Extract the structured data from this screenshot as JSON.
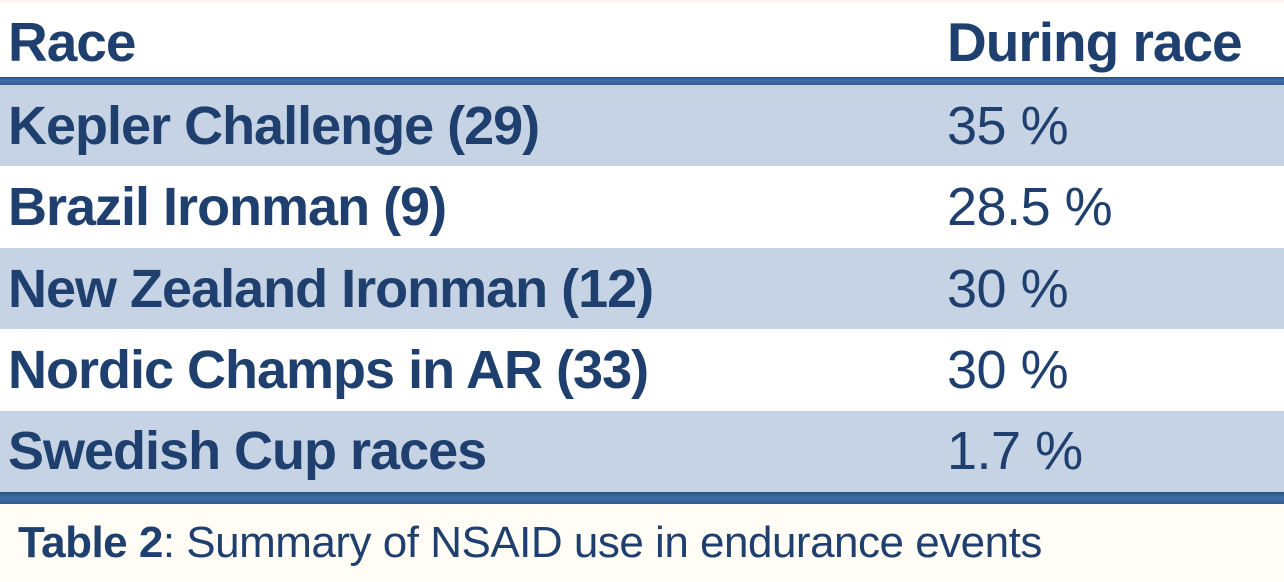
{
  "table": {
    "header": {
      "race_column_label": "Race",
      "during_race_column_label": "During race"
    },
    "rows": [
      {
        "race": "Kepler Challenge (29)",
        "during_race": "35 %"
      },
      {
        "race": "Brazil Ironman (9)",
        "during_race": "28.5 %"
      },
      {
        "race": "New Zealand Ironman (12)",
        "during_race": "30 %"
      },
      {
        "race": "Nordic Champs in AR (33)",
        "during_race": "30 %"
      },
      {
        "race": "Swedish Cup races",
        "during_race": "1.7 %"
      }
    ]
  },
  "caption": {
    "bold_label": "Table 2",
    "rest": ": Summary of NSAID use in endurance events"
  },
  "chart_data": {
    "type": "table",
    "title": "Table 2: Summary of NSAID use in endurance events",
    "columns": [
      "Race",
      "During race"
    ],
    "categories": [
      "Kepler Challenge (29)",
      "Brazil Ironman (9)",
      "New Zealand Ironman (12)",
      "Nordic Champs in AR (33)",
      "Swedish Cup races"
    ],
    "values": [
      35,
      28.5,
      30,
      30,
      1.7
    ],
    "value_unit": "%"
  },
  "colors": {
    "text_navy": "#1f406f",
    "stripe": "#c5d3e4",
    "border_mid": "#3f6ea6",
    "border_top_edge": "#2b5181",
    "border_bottom_edge": "#335d91",
    "caption_bg": "#fffdf5",
    "page_bg": "#ffffff"
  }
}
